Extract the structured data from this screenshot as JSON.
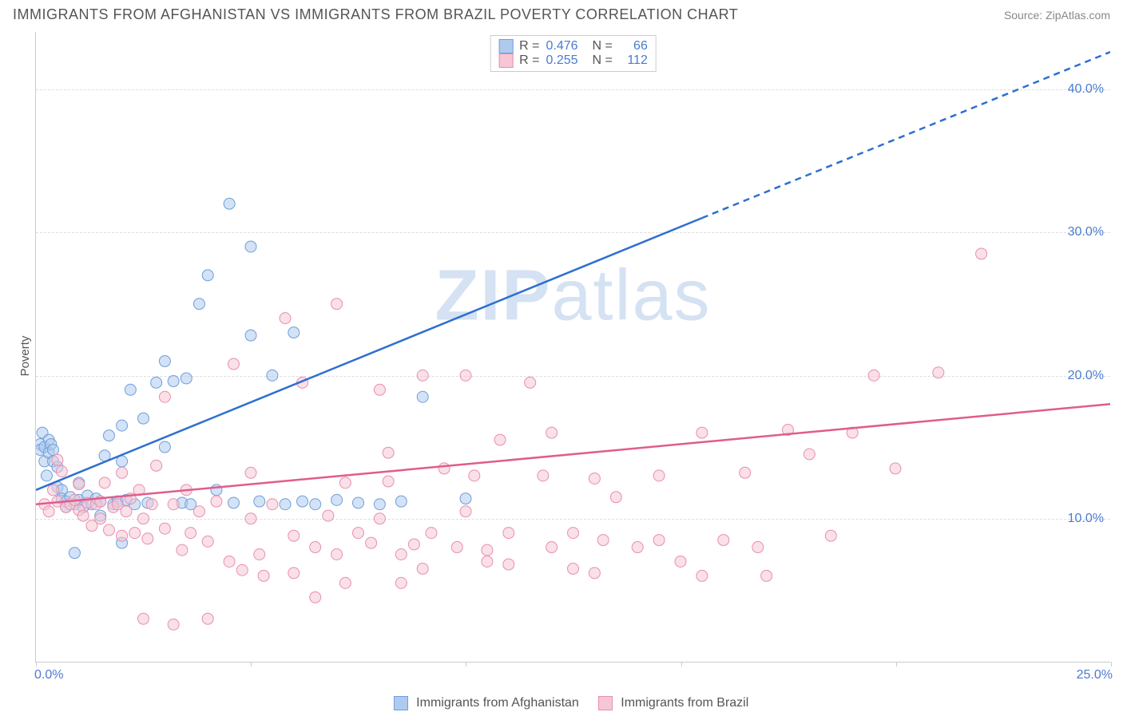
{
  "title": "IMMIGRANTS FROM AFGHANISTAN VS IMMIGRANTS FROM BRAZIL POVERTY CORRELATION CHART",
  "source": "Source: ZipAtlas.com",
  "ylabel": "Poverty",
  "watermark_bold": "ZIP",
  "watermark_light": "atlas",
  "chart": {
    "type": "scatter",
    "xlim": [
      0,
      25
    ],
    "ylim": [
      0,
      44
    ],
    "xticks": [
      0,
      5,
      10,
      15,
      20,
      25
    ],
    "xticklabels": [
      "0.0%",
      "",
      "",
      "",
      "",
      "25.0%"
    ],
    "xticklabel_colors": [
      "#4a7bd0",
      "",
      "",
      "",
      "",
      "#4a7bd0"
    ],
    "yticks": [
      10,
      20,
      30,
      40
    ],
    "yticklabels": [
      "10.0%",
      "20.0%",
      "30.0%",
      "40.0%"
    ],
    "yticklabel_color": "#4a7bd0",
    "grid_color": "#dddddd",
    "axis_color": "#cccccc",
    "background_color": "#ffffff",
    "marker_radius": 7,
    "marker_opacity": 0.55,
    "line_width": 2.5,
    "title_fontsize": 18,
    "label_fontsize": 15,
    "tick_fontsize": 16
  },
  "series": [
    {
      "name": "Immigrants from Afghanistan",
      "color_fill": "#aecbef",
      "color_stroke": "#6f9fd8",
      "line_color": "#2e6fd0",
      "R": "0.476",
      "N": "66",
      "regression": {
        "x1": 0,
        "y1": 12.0,
        "x2_solid": 15.5,
        "y2_solid": 31.0,
        "x2_dash": 25,
        "y2_dash": 42.6
      },
      "points": [
        [
          0.1,
          15.2
        ],
        [
          0.1,
          14.8
        ],
        [
          0.15,
          16.0
        ],
        [
          0.2,
          15.0
        ],
        [
          0.2,
          14.0
        ],
        [
          0.25,
          13.0
        ],
        [
          0.3,
          15.5
        ],
        [
          0.3,
          14.6
        ],
        [
          0.35,
          15.2
        ],
        [
          0.4,
          14.8
        ],
        [
          0.4,
          14.0
        ],
        [
          0.5,
          13.6
        ],
        [
          0.5,
          12.2
        ],
        [
          0.6,
          12.0
        ],
        [
          0.6,
          11.4
        ],
        [
          0.7,
          11.2
        ],
        [
          0.7,
          10.8
        ],
        [
          0.8,
          11.5
        ],
        [
          0.9,
          11.0
        ],
        [
          1.0,
          11.3
        ],
        [
          1.0,
          12.5
        ],
        [
          1.1,
          10.8
        ],
        [
          1.2,
          11.6
        ],
        [
          1.3,
          11.0
        ],
        [
          1.4,
          11.4
        ],
        [
          1.5,
          11.2
        ],
        [
          1.5,
          10.2
        ],
        [
          1.6,
          14.4
        ],
        [
          1.7,
          15.8
        ],
        [
          1.8,
          11.0
        ],
        [
          1.9,
          11.2
        ],
        [
          2.0,
          16.5
        ],
        [
          2.0,
          14.0
        ],
        [
          2.1,
          11.3
        ],
        [
          2.2,
          19.0
        ],
        [
          2.3,
          11.0
        ],
        [
          2.5,
          17.0
        ],
        [
          2.6,
          11.1
        ],
        [
          2.8,
          19.5
        ],
        [
          3.0,
          21.0
        ],
        [
          3.0,
          15.0
        ],
        [
          3.2,
          19.6
        ],
        [
          3.4,
          11.1
        ],
        [
          3.5,
          19.8
        ],
        [
          3.6,
          11.0
        ],
        [
          3.8,
          25.0
        ],
        [
          4.0,
          27.0
        ],
        [
          4.2,
          12.0
        ],
        [
          4.5,
          32.0
        ],
        [
          4.6,
          11.1
        ],
        [
          5.0,
          29.0
        ],
        [
          5.0,
          22.8
        ],
        [
          5.2,
          11.2
        ],
        [
          5.5,
          20.0
        ],
        [
          5.8,
          11.0
        ],
        [
          6.0,
          23.0
        ],
        [
          6.2,
          11.2
        ],
        [
          6.5,
          11.0
        ],
        [
          7.0,
          11.3
        ],
        [
          7.5,
          11.1
        ],
        [
          8.0,
          11.0
        ],
        [
          8.5,
          11.2
        ],
        [
          9.0,
          18.5
        ],
        [
          10.0,
          11.4
        ],
        [
          2.0,
          8.3
        ],
        [
          0.9,
          7.6
        ]
      ]
    },
    {
      "name": "Immigrants from Brazil",
      "color_fill": "#f6c6d4",
      "color_stroke": "#e78fb0",
      "line_color": "#e05c8d",
      "R": "0.255",
      "N": "112",
      "regression": {
        "x1": 0,
        "y1": 11.0,
        "x2_solid": 25,
        "y2_solid": 18.0,
        "x2_dash": 25,
        "y2_dash": 18.0
      },
      "points": [
        [
          0.2,
          11.0
        ],
        [
          0.3,
          10.5
        ],
        [
          0.4,
          12.0
        ],
        [
          0.5,
          11.2
        ],
        [
          0.5,
          14.1
        ],
        [
          0.6,
          13.3
        ],
        [
          0.7,
          10.8
        ],
        [
          0.8,
          11.0
        ],
        [
          0.9,
          11.3
        ],
        [
          1.0,
          12.4
        ],
        [
          1.0,
          10.6
        ],
        [
          1.1,
          10.2
        ],
        [
          1.2,
          11.1
        ],
        [
          1.3,
          9.5
        ],
        [
          1.4,
          11.0
        ],
        [
          1.5,
          10.0
        ],
        [
          1.5,
          11.2
        ],
        [
          1.6,
          12.5
        ],
        [
          1.7,
          9.2
        ],
        [
          1.8,
          10.8
        ],
        [
          1.9,
          11.0
        ],
        [
          2.0,
          13.2
        ],
        [
          2.0,
          8.8
        ],
        [
          2.1,
          10.5
        ],
        [
          2.2,
          11.4
        ],
        [
          2.3,
          9.0
        ],
        [
          2.4,
          12.0
        ],
        [
          2.5,
          10.0
        ],
        [
          2.6,
          8.6
        ],
        [
          2.7,
          11.0
        ],
        [
          2.8,
          13.7
        ],
        [
          3.0,
          18.5
        ],
        [
          3.0,
          9.3
        ],
        [
          3.2,
          11.0
        ],
        [
          3.4,
          7.8
        ],
        [
          3.5,
          12.0
        ],
        [
          3.6,
          9.0
        ],
        [
          3.8,
          10.5
        ],
        [
          4.0,
          8.4
        ],
        [
          4.2,
          11.2
        ],
        [
          4.5,
          7.0
        ],
        [
          4.6,
          20.8
        ],
        [
          4.8,
          6.4
        ],
        [
          5.0,
          10.0
        ],
        [
          5.0,
          13.2
        ],
        [
          5.2,
          7.5
        ],
        [
          5.5,
          11.0
        ],
        [
          5.8,
          24.0
        ],
        [
          6.0,
          8.8
        ],
        [
          6.2,
          19.5
        ],
        [
          6.5,
          8.0
        ],
        [
          6.8,
          10.2
        ],
        [
          7.0,
          25.0
        ],
        [
          7.0,
          7.5
        ],
        [
          7.2,
          12.5
        ],
        [
          7.5,
          9.0
        ],
        [
          7.8,
          8.3
        ],
        [
          8.0,
          10.0
        ],
        [
          8.0,
          19.0
        ],
        [
          8.2,
          14.6
        ],
        [
          8.2,
          12.6
        ],
        [
          8.5,
          7.5
        ],
        [
          8.8,
          8.2
        ],
        [
          9.0,
          20.0
        ],
        [
          9.2,
          9.0
        ],
        [
          9.5,
          13.5
        ],
        [
          9.8,
          8.0
        ],
        [
          10.0,
          10.5
        ],
        [
          10.0,
          20.0
        ],
        [
          10.2,
          13.0
        ],
        [
          10.5,
          7.0
        ],
        [
          10.8,
          15.5
        ],
        [
          11.0,
          9.0
        ],
        [
          11.5,
          19.5
        ],
        [
          11.8,
          13.0
        ],
        [
          12.0,
          8.0
        ],
        [
          12.0,
          16.0
        ],
        [
          12.5,
          6.5
        ],
        [
          13.0,
          12.8
        ],
        [
          13.2,
          8.5
        ],
        [
          13.5,
          11.5
        ],
        [
          14.0,
          8.0
        ],
        [
          14.5,
          13.0
        ],
        [
          15.0,
          7.0
        ],
        [
          15.5,
          16.0
        ],
        [
          16.0,
          8.5
        ],
        [
          16.5,
          13.2
        ],
        [
          17.0,
          6.0
        ],
        [
          17.5,
          16.2
        ],
        [
          18.0,
          14.5
        ],
        [
          18.5,
          8.8
        ],
        [
          19.0,
          16.0
        ],
        [
          19.5,
          20.0
        ],
        [
          20.0,
          13.5
        ],
        [
          21.0,
          20.2
        ],
        [
          22.0,
          28.5
        ],
        [
          3.2,
          2.6
        ],
        [
          4.0,
          3.0
        ],
        [
          5.3,
          6.0
        ],
        [
          6.5,
          4.5
        ],
        [
          6.0,
          6.2
        ],
        [
          7.2,
          5.5
        ],
        [
          8.5,
          5.5
        ],
        [
          9.0,
          6.5
        ],
        [
          10.5,
          7.8
        ],
        [
          11.0,
          6.8
        ],
        [
          12.5,
          9.0
        ],
        [
          13.0,
          6.2
        ],
        [
          14.5,
          8.5
        ],
        [
          15.5,
          6.0
        ],
        [
          16.8,
          8.0
        ],
        [
          2.5,
          3.0
        ]
      ]
    }
  ],
  "legend_top": {
    "R_label": "R =",
    "N_label": "N =",
    "label_color": "#555555",
    "value_color": "#4a7bd0"
  },
  "legend_bottom": {
    "items": [
      "Immigrants from Afghanistan",
      "Immigrants from Brazil"
    ]
  }
}
